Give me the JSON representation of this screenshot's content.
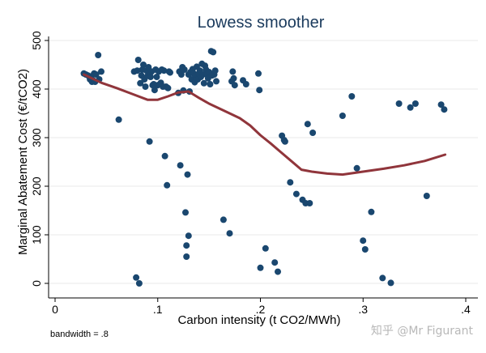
{
  "chart_data": {
    "type": "scatter",
    "title": "Lowess smoother",
    "xlabel": "Carbon intensity (t CO2/MWh)",
    "ylabel": "Marginal Abatement Cost (€/tCO2)",
    "xlim": [
      0,
      0.4
    ],
    "ylim": [
      0,
      500
    ],
    "x_ticks": [
      0,
      0.1,
      0.2,
      0.3,
      0.4
    ],
    "x_tick_labels": [
      "0",
      ".1",
      ".2",
      ".3",
      ".4"
    ],
    "y_ticks": [
      0,
      100,
      200,
      300,
      400,
      500
    ],
    "y_tick_labels": [
      "0",
      "100",
      "200",
      "300",
      "400",
      "500"
    ],
    "grid": "horizontal",
    "legend": "none",
    "note": "bandwidth = .8",
    "marker_color": "#1a476f",
    "line_color": "#90353b",
    "series": [
      {
        "type": "scatter",
        "points": [
          [
            0.028,
            432
          ],
          [
            0.03,
            430
          ],
          [
            0.032,
            428
          ],
          [
            0.034,
            420
          ],
          [
            0.035,
            426
          ],
          [
            0.036,
            415
          ],
          [
            0.037,
            418
          ],
          [
            0.038,
            432
          ],
          [
            0.039,
            415
          ],
          [
            0.04,
            430
          ],
          [
            0.042,
            470
          ],
          [
            0.043,
            420
          ],
          [
            0.045,
            436
          ],
          [
            0.062,
            337
          ],
          [
            0.077,
            436
          ],
          [
            0.079,
            12
          ],
          [
            0.08,
            438
          ],
          [
            0.081,
            460
          ],
          [
            0.082,
            0
          ],
          [
            0.083,
            412
          ],
          [
            0.084,
            428
          ],
          [
            0.085,
            440
          ],
          [
            0.086,
            450
          ],
          [
            0.087,
            420
          ],
          [
            0.088,
            405
          ],
          [
            0.089,
            438
          ],
          [
            0.09,
            427
          ],
          [
            0.091,
            445
          ],
          [
            0.092,
            292
          ],
          [
            0.093,
            425
          ],
          [
            0.094,
            436
          ],
          [
            0.095,
            408
          ],
          [
            0.096,
            410
          ],
          [
            0.097,
            398
          ],
          [
            0.098,
            440
          ],
          [
            0.099,
            425
          ],
          [
            0.1,
            408
          ],
          [
            0.101,
            436
          ],
          [
            0.102,
            410
          ],
          [
            0.103,
            413
          ],
          [
            0.104,
            440
          ],
          [
            0.105,
            405
          ],
          [
            0.106,
            438
          ],
          [
            0.107,
            262
          ],
          [
            0.108,
            405
          ],
          [
            0.109,
            202
          ],
          [
            0.11,
            402
          ],
          [
            0.111,
            436
          ],
          [
            0.112,
            434
          ],
          [
            0.12,
            392
          ],
          [
            0.121,
            436
          ],
          [
            0.122,
            243
          ],
          [
            0.123,
            430
          ],
          [
            0.124,
            445
          ],
          [
            0.125,
            397
          ],
          [
            0.126,
            440
          ],
          [
            0.127,
            146
          ],
          [
            0.128,
            78
          ],
          [
            0.129,
            224
          ],
          [
            0.13,
            98
          ],
          [
            0.13,
            430
          ],
          [
            0.131,
            395
          ],
          [
            0.132,
            435
          ],
          [
            0.133,
            420
          ],
          [
            0.134,
            441
          ],
          [
            0.135,
            432
          ],
          [
            0.136,
            414
          ],
          [
            0.137,
            428
          ],
          [
            0.138,
            446
          ],
          [
            0.139,
            420
          ],
          [
            0.14,
            432
          ],
          [
            0.141,
            438
          ],
          [
            0.142,
            425
          ],
          [
            0.143,
            452
          ],
          [
            0.144,
            430
          ],
          [
            0.145,
            412
          ],
          [
            0.146,
            448
          ],
          [
            0.147,
            440
          ],
          [
            0.148,
            430
          ],
          [
            0.149,
            422
          ],
          [
            0.15,
            435
          ],
          [
            0.151,
            410
          ],
          [
            0.152,
            478
          ],
          [
            0.153,
            428
          ],
          [
            0.154,
            476
          ],
          [
            0.155,
            430
          ],
          [
            0.156,
            438
          ],
          [
            0.157,
            416
          ],
          [
            0.128,
            55
          ],
          [
            0.164,
            131
          ],
          [
            0.17,
            103
          ],
          [
            0.172,
            416
          ],
          [
            0.173,
            436
          ],
          [
            0.174,
            422
          ],
          [
            0.175,
            408
          ],
          [
            0.183,
            418
          ],
          [
            0.186,
            410
          ],
          [
            0.198,
            432
          ],
          [
            0.199,
            398
          ],
          [
            0.2,
            32
          ],
          [
            0.205,
            72
          ],
          [
            0.214,
            43
          ],
          [
            0.217,
            24
          ],
          [
            0.221,
            304
          ],
          [
            0.223,
            295
          ],
          [
            0.224,
            292
          ],
          [
            0.229,
            208
          ],
          [
            0.235,
            184
          ],
          [
            0.241,
            172
          ],
          [
            0.244,
            165
          ],
          [
            0.246,
            328
          ],
          [
            0.248,
            165
          ],
          [
            0.251,
            310
          ],
          [
            0.28,
            345
          ],
          [
            0.289,
            385
          ],
          [
            0.294,
            237
          ],
          [
            0.3,
            88
          ],
          [
            0.302,
            70
          ],
          [
            0.308,
            147
          ],
          [
            0.319,
            11
          ],
          [
            0.327,
            1
          ],
          [
            0.335,
            370
          ],
          [
            0.346,
            362
          ],
          [
            0.351,
            370
          ],
          [
            0.362,
            180
          ],
          [
            0.376,
            368
          ],
          [
            0.379,
            358
          ]
        ]
      },
      {
        "type": "line",
        "points": [
          [
            0.028,
            430
          ],
          [
            0.045,
            413
          ],
          [
            0.06,
            402
          ],
          [
            0.075,
            390
          ],
          [
            0.09,
            378
          ],
          [
            0.1,
            378
          ],
          [
            0.11,
            385
          ],
          [
            0.12,
            393
          ],
          [
            0.13,
            395
          ],
          [
            0.14,
            382
          ],
          [
            0.15,
            370
          ],
          [
            0.16,
            360
          ],
          [
            0.17,
            350
          ],
          [
            0.18,
            340
          ],
          [
            0.19,
            325
          ],
          [
            0.2,
            305
          ],
          [
            0.21,
            288
          ],
          [
            0.22,
            270
          ],
          [
            0.23,
            252
          ],
          [
            0.24,
            234
          ],
          [
            0.25,
            230
          ],
          [
            0.265,
            226
          ],
          [
            0.28,
            224
          ],
          [
            0.3,
            230
          ],
          [
            0.32,
            236
          ],
          [
            0.34,
            243
          ],
          [
            0.36,
            252
          ],
          [
            0.38,
            265
          ]
        ]
      }
    ]
  },
  "watermark": "知乎 @Mr Figurant"
}
